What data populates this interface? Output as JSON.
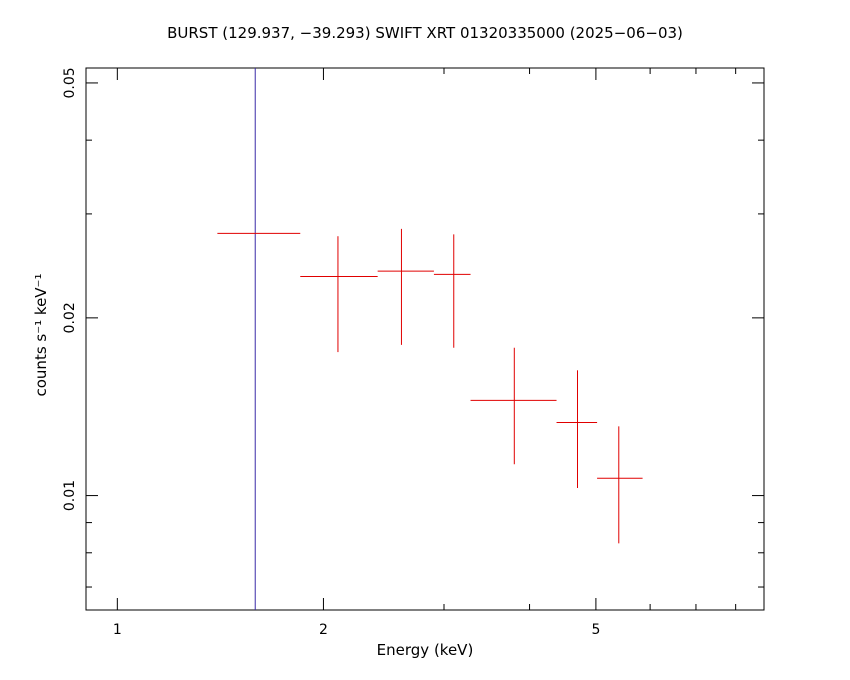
{
  "chart_data": {
    "type": "scatter",
    "title": "BURST (129.937, −39.293) SWIFT XRT 01320335000 (2025−06−03)",
    "xlabel": "Energy (keV)",
    "ylabel": "counts s⁻¹ keV⁻¹",
    "x_scale": "log",
    "y_scale": "log",
    "xlim": [
      0.9,
      8.8
    ],
    "ylim": [
      0.0064,
      0.053
    ],
    "x_ticks": [
      {
        "value": 1,
        "label": "1"
      },
      {
        "value": 2,
        "label": "2"
      },
      {
        "value": 5,
        "label": "5"
      }
    ],
    "y_ticks": [
      {
        "value": 0.01,
        "label": "0.01"
      },
      {
        "value": 0.02,
        "label": "0.02"
      },
      {
        "value": 0.05,
        "label": "0.05"
      }
    ],
    "vline": {
      "x": 1.59,
      "color": "#3a2aa8"
    },
    "series": [
      {
        "color": "#e00000",
        "points": [
          {
            "x": 1.59,
            "xlo": 1.4,
            "xhi": 1.85,
            "y": 0.0278,
            "ylo": null,
            "yhi": null
          },
          {
            "x": 2.1,
            "xlo": 1.85,
            "xhi": 2.4,
            "y": 0.0235,
            "ylo": 0.0175,
            "yhi": 0.0275
          },
          {
            "x": 2.6,
            "xlo": 2.4,
            "xhi": 2.9,
            "y": 0.024,
            "ylo": 0.018,
            "yhi": 0.0283
          },
          {
            "x": 3.1,
            "xlo": 2.9,
            "xhi": 3.28,
            "y": 0.0237,
            "ylo": 0.0178,
            "yhi": 0.0277
          },
          {
            "x": 3.8,
            "xlo": 3.28,
            "xhi": 4.38,
            "y": 0.0145,
            "ylo": 0.0113,
            "yhi": 0.0178
          },
          {
            "x": 4.7,
            "xlo": 4.38,
            "xhi": 5.02,
            "y": 0.0133,
            "ylo": 0.0103,
            "yhi": 0.0163
          },
          {
            "x": 5.4,
            "xlo": 5.02,
            "xhi": 5.85,
            "y": 0.0107,
            "ylo": 0.0083,
            "yhi": 0.0131
          }
        ]
      }
    ],
    "grid": false,
    "legend": "none"
  }
}
